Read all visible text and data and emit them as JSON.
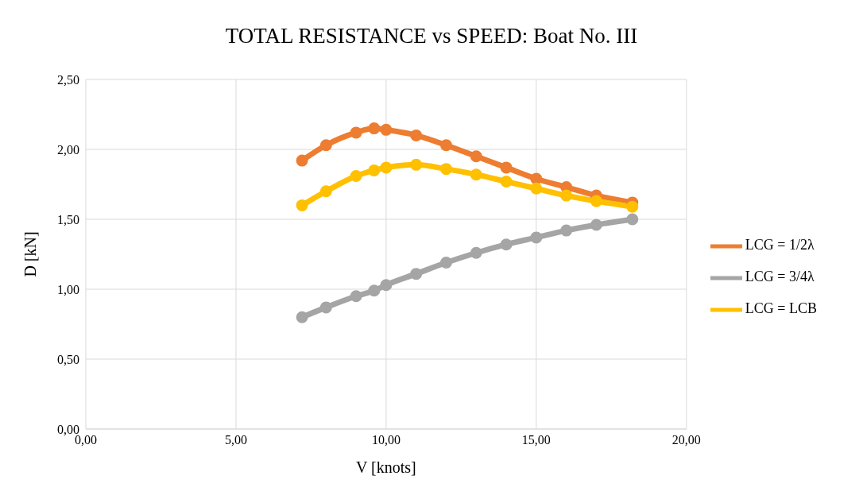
{
  "chart_data": {
    "type": "line",
    "title": "TOTAL RESISTANCE vs SPEED: Boat No. III",
    "xlabel": "V [knots]",
    "ylabel": "D [kN]",
    "x": [
      7.2,
      8,
      9,
      9.6,
      10,
      11,
      12,
      13,
      14,
      15,
      16,
      17,
      18.2
    ],
    "series": [
      {
        "name": "LCG = 1/2λ",
        "color": "#ed7d31",
        "values": [
          1.92,
          2.03,
          2.12,
          2.15,
          2.14,
          2.1,
          2.03,
          1.95,
          1.87,
          1.79,
          1.73,
          1.67,
          1.62
        ]
      },
      {
        "name": "LCG = 3/4λ",
        "color": "#a5a5a5",
        "values": [
          0.8,
          0.87,
          0.95,
          0.99,
          1.03,
          1.11,
          1.19,
          1.26,
          1.32,
          1.37,
          1.42,
          1.46,
          1.5
        ]
      },
      {
        "name": "LCG = LCB",
        "color": "#ffc000",
        "values": [
          1.6,
          1.7,
          1.81,
          1.85,
          1.87,
          1.89,
          1.86,
          1.82,
          1.77,
          1.72,
          1.67,
          1.63,
          1.59
        ]
      }
    ],
    "xlim": [
      0,
      20
    ],
    "xticks": [
      {
        "value": 0,
        "label": "0,00"
      },
      {
        "value": 5,
        "label": "5,00"
      },
      {
        "value": 10,
        "label": "10,00"
      },
      {
        "value": 15,
        "label": "15,00"
      },
      {
        "value": 20,
        "label": "20,00"
      }
    ],
    "ylim": [
      0,
      2.5
    ],
    "yticks": [
      {
        "value": 0,
        "label": "0,00"
      },
      {
        "value": 0.5,
        "label": "0,50"
      },
      {
        "value": 1,
        "label": "1,00"
      },
      {
        "value": 1.5,
        "label": "1,50"
      },
      {
        "value": 2,
        "label": "2,00"
      },
      {
        "value": 2.5,
        "label": "2,50"
      }
    ],
    "grid": true,
    "legend": "right",
    "marker": "circle",
    "line_style": "solid"
  }
}
